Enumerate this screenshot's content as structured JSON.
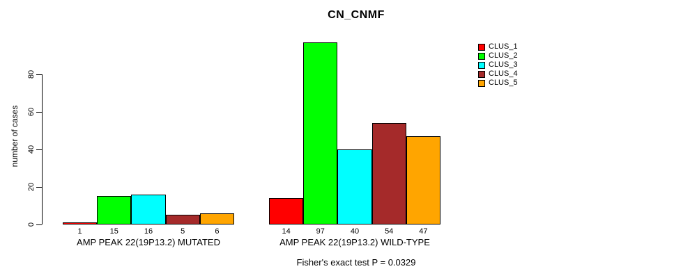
{
  "chart_data": {
    "type": "bar",
    "title": "CN_CNMF",
    "xlabel": "",
    "ylabel": "number of cases",
    "ylim": [
      0,
      80
    ],
    "yticks": [
      "0",
      "20",
      "40",
      "60",
      "80"
    ],
    "grid": false,
    "legend_position": "top-right",
    "categories": [
      "AMP PEAK 22(19P13.2) MUTATED",
      "AMP PEAK 22(19P13.2) WILD-TYPE"
    ],
    "series": [
      {
        "name": "CLUS_1",
        "color": "#FF0000",
        "values": [
          1,
          14
        ]
      },
      {
        "name": "CLUS_2",
        "color": "#00FF00",
        "values": [
          15,
          97
        ]
      },
      {
        "name": "CLUS_3",
        "color": "#00FFFF",
        "values": [
          16,
          40
        ]
      },
      {
        "name": "CLUS_4",
        "color": "#A52A2A",
        "values": [
          5,
          54
        ]
      },
      {
        "name": "CLUS_5",
        "color": "#FFA500",
        "values": [
          6,
          47
        ]
      }
    ],
    "bar_value_labels": [
      [
        "1",
        "15",
        "16",
        "5",
        "6"
      ],
      [
        "14",
        "97",
        "40",
        "54",
        "47"
      ]
    ],
    "annotation": "Fisher's exact test P = 0.0329"
  }
}
